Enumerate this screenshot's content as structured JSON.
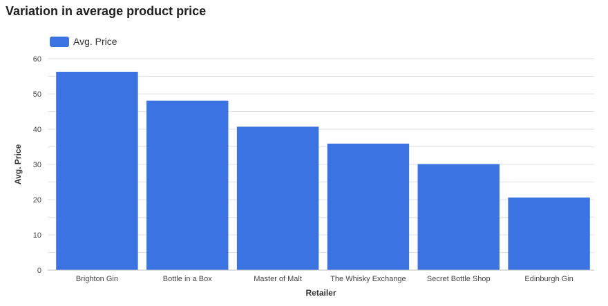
{
  "chart_data": {
    "type": "bar",
    "title": "Variation in average product price",
    "xlabel": "Retailer",
    "ylabel": "Avg. Price",
    "categories": [
      "Brighton Gin",
      "Bottle in a Box",
      "Master of Malt",
      "The Whisky Exchange",
      "Secret Bottle Shop",
      "Edinburgh Gin"
    ],
    "series": [
      {
        "name": "Avg. Price",
        "values": [
          56.3,
          48.1,
          40.7,
          35.9,
          30.1,
          20.6
        ]
      }
    ],
    "ylim": [
      0,
      60
    ],
    "yticks": [
      0,
      10,
      20,
      30,
      40,
      50,
      60
    ],
    "grid": true,
    "legend_position": "top-left"
  },
  "colors": {
    "bar": "#3b73e3",
    "grid": "#e2e2e2",
    "axis": "#bdbdbd"
  }
}
